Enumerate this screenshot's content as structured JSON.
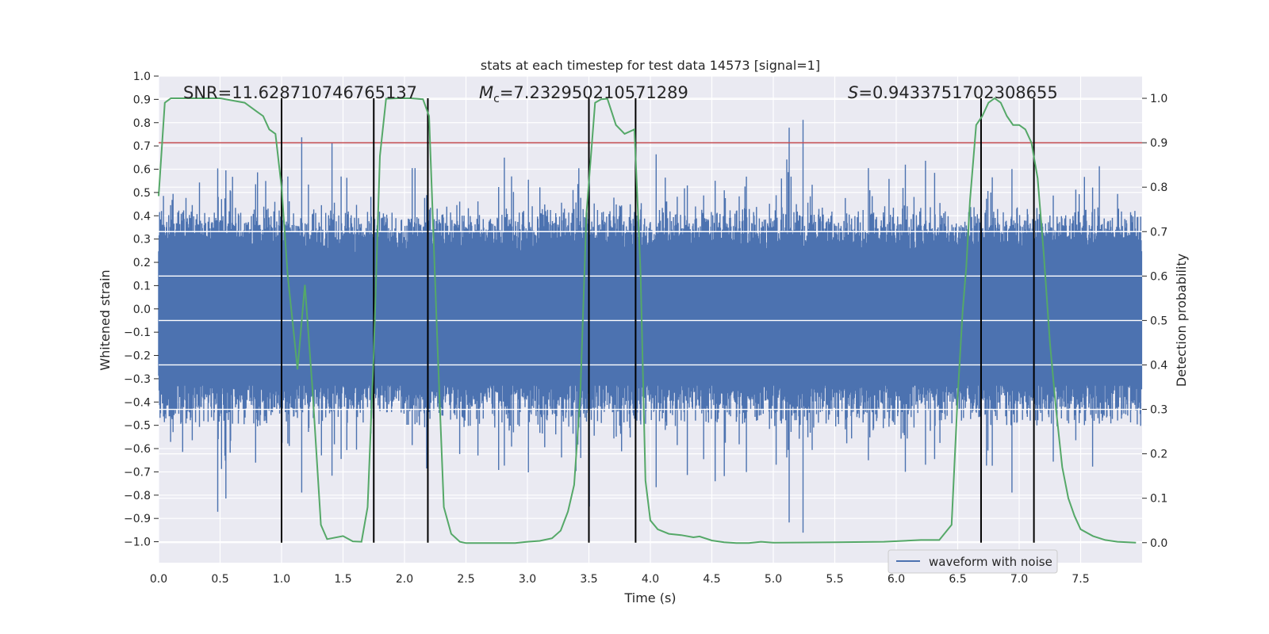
{
  "chart_data": {
    "type": "line",
    "title": "stats at each timestep for test data 14573 [signal=1]",
    "xlabel": "Time (s)",
    "ylabel": "Whitened strain",
    "y2label": "Detection probability",
    "xlim": [
      0.0,
      8.0
    ],
    "ylim": [
      -1.09,
      1.0
    ],
    "y2lim": [
      -0.045,
      1.05
    ],
    "xticks": [
      "0.0",
      "0.5",
      "1.0",
      "1.5",
      "2.0",
      "2.5",
      "3.0",
      "3.5",
      "4.0",
      "4.5",
      "5.0",
      "5.5",
      "6.0",
      "6.5",
      "7.0",
      "7.5"
    ],
    "xtick_values": [
      0.0,
      0.5,
      1.0,
      1.5,
      2.0,
      2.5,
      3.0,
      3.5,
      4.0,
      4.5,
      5.0,
      5.5,
      6.0,
      6.5,
      7.0,
      7.5
    ],
    "yticks": [
      "1.0",
      "0.9",
      "0.8",
      "0.7",
      "0.6",
      "0.5",
      "0.4",
      "0.3",
      "0.2",
      "0.1",
      "0.0",
      "−0.1",
      "−0.2",
      "−0.3",
      "−0.4",
      "−0.5",
      "−0.6",
      "−0.7",
      "−0.8",
      "−0.9",
      "−1.0"
    ],
    "ytick_values": [
      1.0,
      0.9,
      0.8,
      0.7,
      0.6,
      0.5,
      0.4,
      0.3,
      0.2,
      0.1,
      0.0,
      -0.1,
      -0.2,
      -0.3,
      -0.4,
      -0.5,
      -0.6,
      -0.7,
      -0.8,
      -0.9,
      -1.0
    ],
    "y2ticks": [
      "1.0",
      "0.9",
      "0.8",
      "0.7",
      "0.6",
      "0.5",
      "0.4",
      "0.3",
      "0.2",
      "0.1",
      "0.0"
    ],
    "y2tick_values": [
      1.0,
      0.9,
      0.8,
      0.7,
      0.6,
      0.5,
      0.4,
      0.3,
      0.2,
      0.1,
      0.0
    ],
    "annotations": {
      "snr": "SNR=11.628710746765137",
      "mc": "=7.232950210571289",
      "mc_symbol": "M",
      "mc_sub": "c",
      "s": "=0.9433751702308655",
      "s_symbol": "S"
    },
    "threshold": {
      "value": 0.9,
      "axis": "y2",
      "color": "#c44e52"
    },
    "event_lines": [
      1.0,
      1.75,
      2.19,
      3.5,
      3.88,
      6.69,
      7.12
    ],
    "series": [
      {
        "name": "waveform with noise",
        "axis": "y",
        "color": "#4c72b0",
        "style": "noise",
        "sample_rate_hz": 256,
        "envelope_core": 0.33,
        "spike_max": 0.9,
        "seed": 14573
      },
      {
        "name": "detection probability",
        "axis": "y2",
        "color": "#55a868",
        "x": [
          0.0,
          0.05,
          0.1,
          0.15,
          0.2,
          0.3,
          0.5,
          0.7,
          0.8,
          0.85,
          0.9,
          0.95,
          1.0,
          1.05,
          1.1,
          1.13,
          1.19,
          1.25,
          1.32,
          1.37,
          1.5,
          1.58,
          1.65,
          1.7,
          1.75,
          1.8,
          1.85,
          1.95,
          2.05,
          2.15,
          2.2,
          2.27,
          2.32,
          2.38,
          2.45,
          2.5,
          2.6,
          2.7,
          2.9,
          3.0,
          3.1,
          3.2,
          3.27,
          3.33,
          3.38,
          3.43,
          3.48,
          3.55,
          3.6,
          3.65,
          3.72,
          3.79,
          3.87,
          3.92,
          3.96,
          4.0,
          4.06,
          4.15,
          4.25,
          4.35,
          4.4,
          4.5,
          4.6,
          4.7,
          4.8,
          4.9,
          5.0,
          5.5,
          5.9,
          6.2,
          6.35,
          6.45,
          6.5,
          6.54,
          6.57,
          6.6,
          6.65,
          6.7,
          6.75,
          6.8,
          6.85,
          6.9,
          6.95,
          7.0,
          7.05,
          7.1,
          7.15,
          7.2,
          7.25,
          7.3,
          7.35,
          7.4,
          7.45,
          7.5,
          7.6,
          7.7,
          7.8,
          7.95
        ],
        "values": [
          0.78,
          0.99,
          1.0,
          1.0,
          1.0,
          1.0,
          1.0,
          0.99,
          0.97,
          0.96,
          0.93,
          0.92,
          0.8,
          0.6,
          0.47,
          0.39,
          0.58,
          0.35,
          0.04,
          0.008,
          0.015,
          0.003,
          0.002,
          0.08,
          0.43,
          0.87,
          0.999,
          1.0,
          1.0,
          0.998,
          0.96,
          0.43,
          0.08,
          0.02,
          0.002,
          -0.001,
          -0.001,
          -0.001,
          -0.001,
          0.002,
          0.004,
          0.01,
          0.027,
          0.07,
          0.13,
          0.33,
          0.74,
          0.99,
          0.998,
          0.999,
          0.94,
          0.92,
          0.93,
          0.61,
          0.14,
          0.05,
          0.03,
          0.02,
          0.017,
          0.012,
          0.014,
          0.005,
          0.001,
          -0.001,
          -0.001,
          0.002,
          0.0,
          0.001,
          0.002,
          0.006,
          0.006,
          0.04,
          0.33,
          0.52,
          0.62,
          0.77,
          0.94,
          0.96,
          0.99,
          1.0,
          0.99,
          0.96,
          0.94,
          0.94,
          0.93,
          0.9,
          0.82,
          0.65,
          0.45,
          0.3,
          0.17,
          0.1,
          0.06,
          0.03,
          0.015,
          0.006,
          0.002,
          0.0
        ]
      }
    ],
    "legend": {
      "entries": [
        "waveform with noise"
      ],
      "placement": "lower-right"
    }
  }
}
